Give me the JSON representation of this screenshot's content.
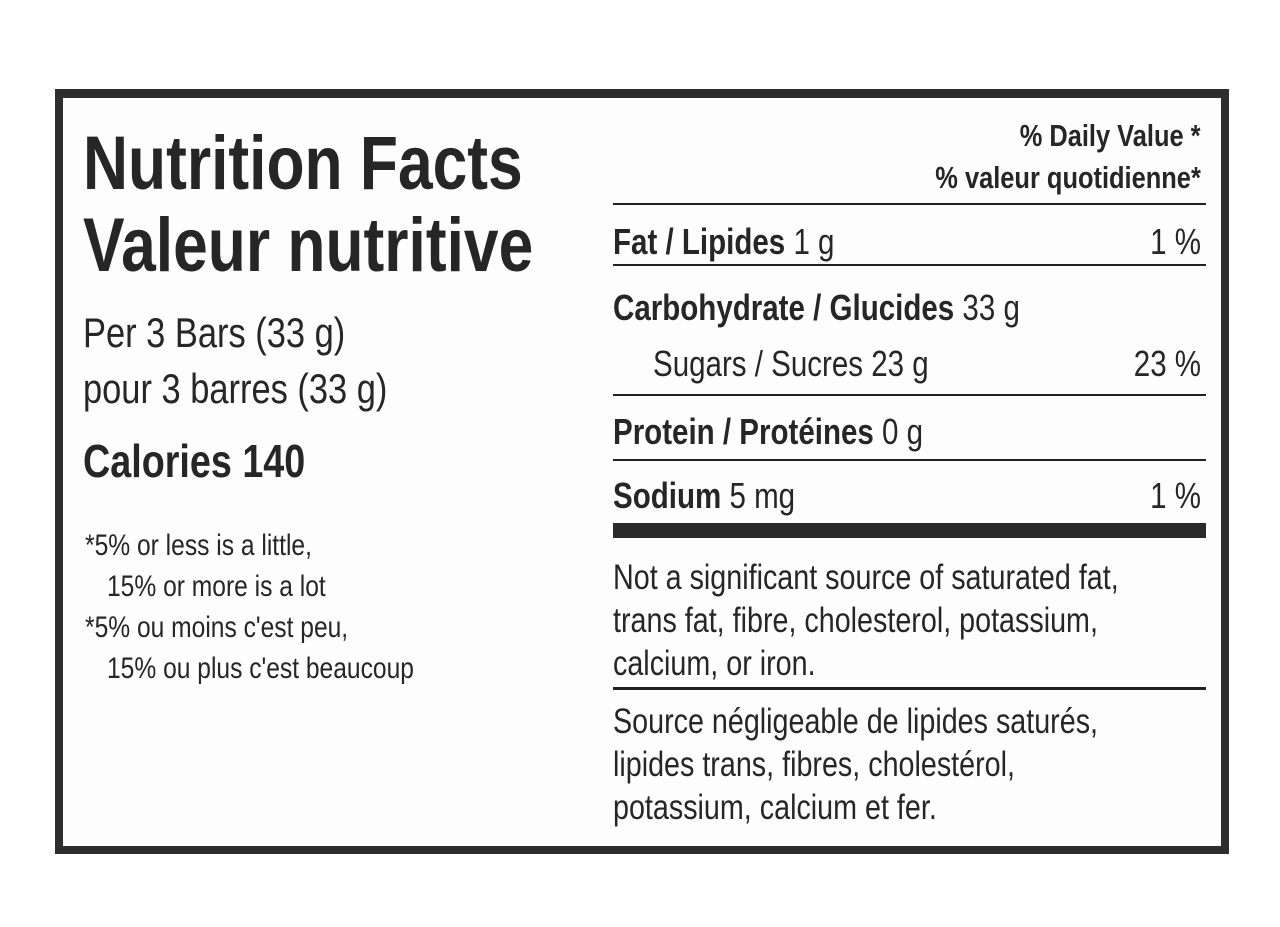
{
  "title_en": "Nutrition Facts",
  "title_fr": "Valeur nutritive",
  "serving_en": "Per 3 Bars (33 g)",
  "serving_fr": "pour 3 barres (33 g)",
  "calories": "Calories 140",
  "footnotes": [
    "*5% or less is a little,",
    "15% or more is a lot",
    "*5% ou moins c'est peu,",
    "15% ou plus c'est beaucoup"
  ],
  "daily_value_header_en": "% Daily Value *",
  "daily_value_header_fr": "% valeur quotidienne*",
  "nutrients": [
    {
      "label": "Fat / Lipides",
      "amount": "1 g",
      "dv": "1 %"
    },
    {
      "label": "Carbohydrate / Glucides",
      "amount": "33 g",
      "dv": ""
    },
    {
      "label": "Sugars / Sucres",
      "amount": "23 g",
      "dv": "23 %"
    },
    {
      "label": "Protein / Protéines",
      "amount": "0 g",
      "dv": ""
    },
    {
      "label": "Sodium",
      "amount": "5 mg",
      "dv": "1 %"
    }
  ],
  "not_significant_en": [
    "Not a significant source of saturated fat,",
    "trans fat, fibre, cholesterol, potassium,",
    "calcium, or iron."
  ],
  "not_significant_fr": [
    "Source négligeable de lipides saturés,",
    "lipides trans, fibres, cholestérol,",
    "potassium, calcium et fer."
  ]
}
